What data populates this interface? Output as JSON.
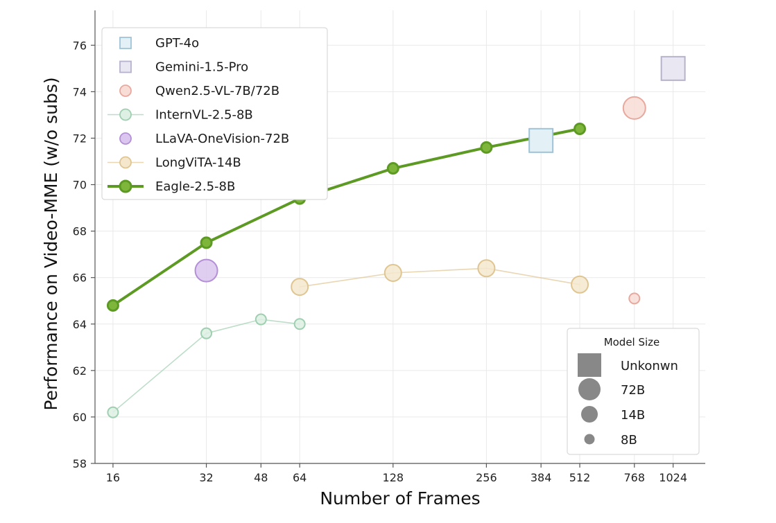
{
  "chart_data": {
    "type": "scatter",
    "xlabel": "Number of Frames",
    "ylabel": "Performance on Video-MME (w/o subs)",
    "x_scale": "log2",
    "xlim": [
      14,
      1300
    ],
    "ylim": [
      58,
      77.5
    ],
    "x_ticks": [
      16,
      32,
      48,
      64,
      128,
      256,
      384,
      512,
      768,
      1024
    ],
    "y_ticks": [
      58,
      60,
      62,
      64,
      66,
      68,
      70,
      72,
      74,
      76
    ],
    "grid": true,
    "legend_position": "top-left",
    "series": [
      {
        "name": "GPT-4o",
        "marker": "square",
        "model_size": "Unkonwn",
        "color": "#9ec3d8",
        "fill": "#e3f0f5",
        "line": false,
        "points": [
          {
            "x": 384,
            "y": 71.9
          }
        ]
      },
      {
        "name": "Gemini-1.5-Pro",
        "marker": "square",
        "model_size": "Unkonwn",
        "color": "#b6b2cd",
        "fill": "#e9e7f1",
        "line": false,
        "points": [
          {
            "x": 1024,
            "y": 75.0
          }
        ]
      },
      {
        "name": "Qwen2.5-VL-7B/72B",
        "marker": "circle",
        "color": "#e8a89e",
        "fill": "#f8dcd6",
        "line": false,
        "points": [
          {
            "x": 768,
            "y": 73.3,
            "model_size": "72B"
          },
          {
            "x": 768,
            "y": 65.1,
            "model_size": "8B"
          }
        ]
      },
      {
        "name": "InternVL-2.5-8B",
        "marker": "circle",
        "model_size": "8B",
        "color": "#9fcfb1",
        "fill": "#ddf0e3",
        "line": true,
        "points": [
          {
            "x": 16,
            "y": 60.2
          },
          {
            "x": 32,
            "y": 63.6
          },
          {
            "x": 48,
            "y": 64.2
          },
          {
            "x": 64,
            "y": 64.0
          }
        ]
      },
      {
        "name": "LLaVA-OneVision-72B",
        "marker": "circle",
        "model_size": "72B",
        "color": "#b38fd6",
        "fill": "#dac6ee",
        "line": false,
        "points": [
          {
            "x": 32,
            "y": 66.3
          }
        ]
      },
      {
        "name": "LongViTA-14B",
        "marker": "circle",
        "model_size": "14B",
        "color": "#dfc592",
        "fill": "#f4e7cc",
        "line": true,
        "points": [
          {
            "x": 64,
            "y": 65.6
          },
          {
            "x": 128,
            "y": 66.2
          },
          {
            "x": 256,
            "y": 66.4
          },
          {
            "x": 512,
            "y": 65.7
          }
        ]
      },
      {
        "name": "Eagle-2.5-8B",
        "marker": "circle",
        "model_size": "8B",
        "color": "#5d9a24",
        "fill": "#7db63a",
        "line": true,
        "points": [
          {
            "x": 16,
            "y": 64.8
          },
          {
            "x": 32,
            "y": 67.5
          },
          {
            "x": 64,
            "y": 69.4
          },
          {
            "x": 128,
            "y": 70.7
          },
          {
            "x": 256,
            "y": 71.6
          },
          {
            "x": 512,
            "y": 72.4
          }
        ]
      }
    ],
    "size_legend": {
      "title": "Model Size",
      "position": "bottom-right",
      "items": [
        "Unkonwn",
        "72B",
        "14B",
        "8B"
      ]
    }
  }
}
